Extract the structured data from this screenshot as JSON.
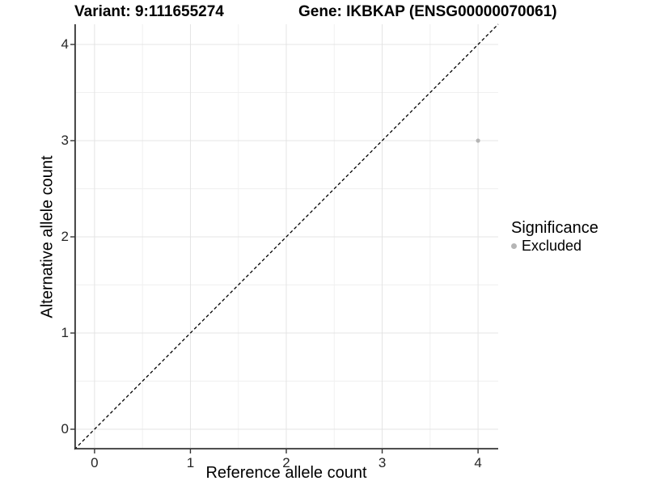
{
  "figure": {
    "title_left": "Variant: 9:111655274",
    "title_right": "Gene: IKBKAP (ENSG00000070061)"
  },
  "legend": {
    "title": "Significance",
    "items": [
      {
        "label": "Excluded",
        "color": "#b5b5b5",
        "icon": "point-icon"
      }
    ]
  },
  "chart_data": {
    "type": "scatter",
    "title": "Variant: 9:111655274 | Gene: IKBKAP (ENSG00000070061)",
    "xlabel": "Reference allele count",
    "ylabel": "Alternative allele count",
    "xlim": [
      -0.21,
      4.21
    ],
    "ylim": [
      -0.21,
      4.21
    ],
    "x_ticks": [
      0,
      1,
      2,
      3,
      4
    ],
    "y_ticks": [
      0,
      1,
      2,
      3,
      4
    ],
    "x_minor_ticks": [
      0.5,
      1.5,
      2.5,
      3.5
    ],
    "y_minor_ticks": [
      0.5,
      1.5,
      2.5,
      3.5
    ],
    "grid": true,
    "legend_position": "right",
    "legend_title": "Significance",
    "series": [
      {
        "name": "Excluded",
        "color": "#b5b5b5",
        "points": [
          {
            "x": 4,
            "y": 3
          }
        ]
      }
    ],
    "reference_line": {
      "type": "identity_y_equals_x",
      "style": "dashed",
      "color": "#000000"
    },
    "style": {
      "panel_background": "#ffffff",
      "grid_major_color": "#e4e4e4",
      "grid_minor_color": "#f0f0f0",
      "axis_line_color": "#333333",
      "tick_mark_color": "#333333",
      "tick_label_color": "#262626",
      "point_radius": 2.6,
      "legend_dot_color": "#b5b5b5"
    }
  }
}
